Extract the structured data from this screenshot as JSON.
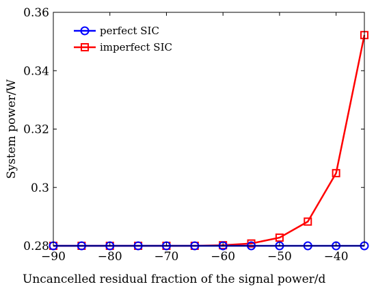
{
  "chart_data": {
    "type": "line",
    "xlabel": "Uncancelled residual fraction of the signal power/d",
    "ylabel": "System power/W",
    "xlim": [
      -90,
      -35
    ],
    "ylim": [
      0.28,
      0.36
    ],
    "x_ticks": [
      -90,
      -80,
      -70,
      -60,
      -50,
      -40
    ],
    "y_ticks": [
      0.28,
      0.3,
      0.32,
      0.34,
      0.36
    ],
    "x_tick_labels": [
      "−90",
      "−80",
      "−70",
      "−60",
      "−50",
      "−40"
    ],
    "y_tick_labels": [
      "0.28",
      "0.3",
      "0.32",
      "0.34",
      "0.36"
    ],
    "grid": false,
    "legend_position": "top-left",
    "x": [
      -90,
      -85,
      -80,
      -75,
      -70,
      -65,
      -60,
      -55,
      -50,
      -45,
      -40,
      -35
    ],
    "series": [
      {
        "name": "perfect SIC",
        "color": "#0000ff",
        "marker": "circle",
        "values": [
          0.28,
          0.28,
          0.28,
          0.28,
          0.28,
          0.28,
          0.28,
          0.28,
          0.28,
          0.28,
          0.28,
          0.28
        ]
      },
      {
        "name": "imperfect SIC",
        "color": "#ff0000",
        "marker": "square",
        "values": [
          0.28,
          0.28,
          0.28,
          0.28,
          0.28,
          0.28,
          0.2802,
          0.2808,
          0.2828,
          0.2883,
          0.3049,
          0.3522
        ]
      }
    ]
  }
}
